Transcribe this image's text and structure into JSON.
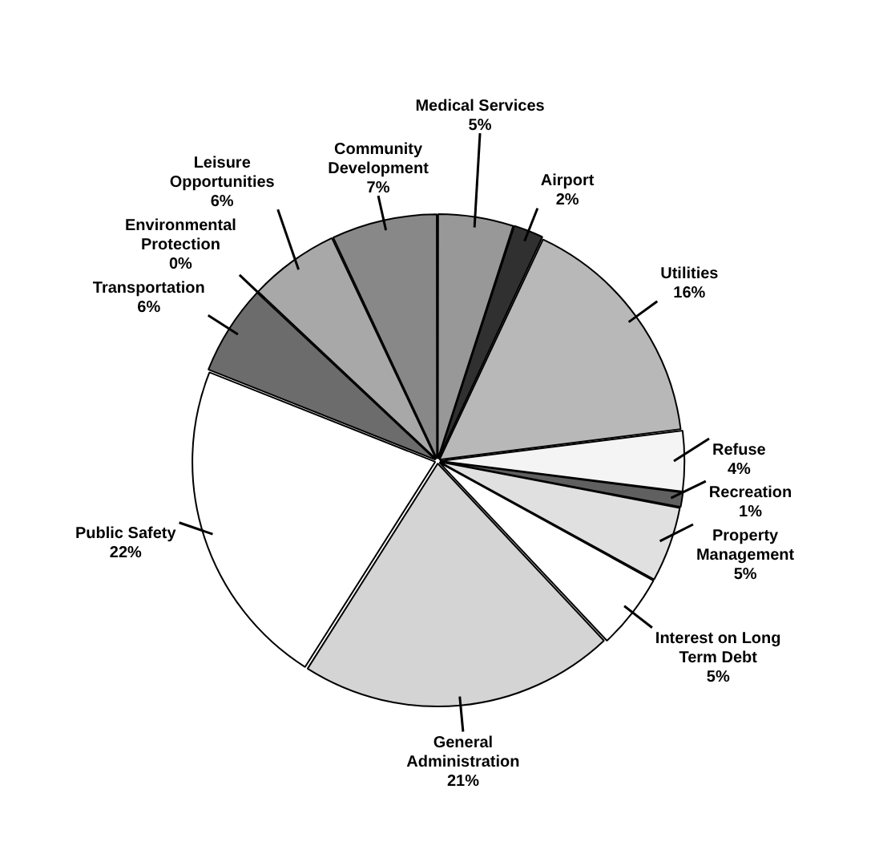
{
  "chart_data": {
    "type": "pie",
    "categories": [
      "Medical Services",
      "Airport",
      "Utilities",
      "Refuse",
      "Recreation",
      "Property Management",
      "Interest on Long Term Debt",
      "General Administration",
      "Public Safety",
      "Transportation",
      "Environmental Protection",
      "Leisure Opportunities",
      "Community Development"
    ],
    "values": [
      5,
      2,
      16,
      4,
      1,
      5,
      5,
      21,
      22,
      6,
      0,
      6,
      7
    ],
    "value_labels": [
      "5%",
      "2%",
      "16%",
      "4%",
      "1%",
      "5%",
      "5%",
      "21%",
      "22%",
      "6%",
      "0%",
      "6%",
      "7%"
    ],
    "colors": [
      "#989898",
      "#303030",
      "#b8b8b8",
      "#f4f4f4",
      "#606060",
      "#e0e0e0",
      "#ffffff",
      "#d4d4d4",
      "#ffffff",
      "#6c6c6c",
      "#000000",
      "#a8a8a8",
      "#888888"
    ]
  }
}
